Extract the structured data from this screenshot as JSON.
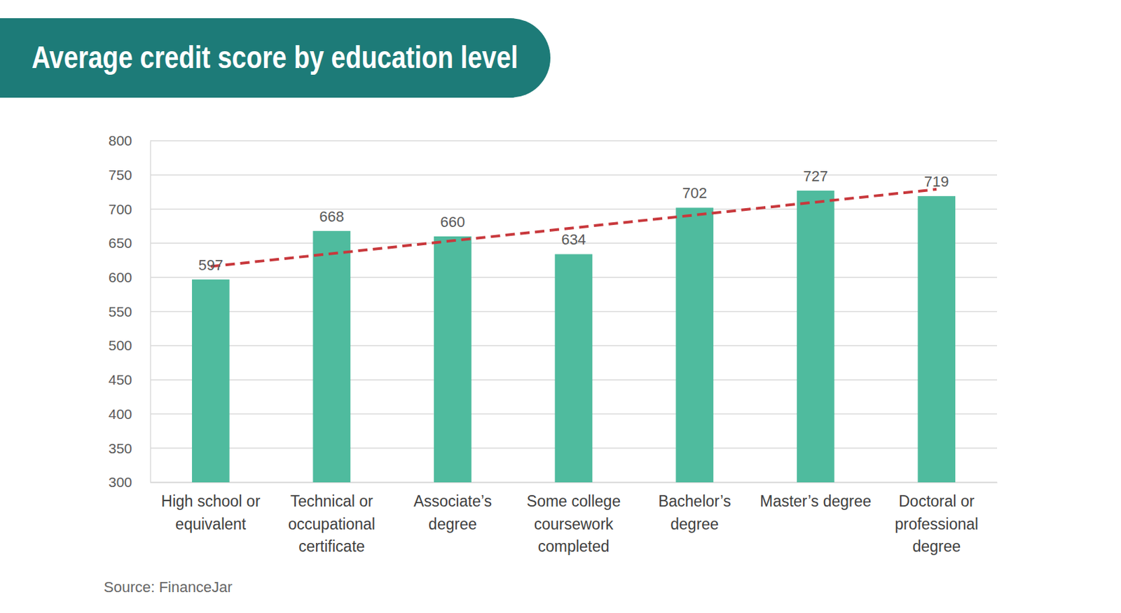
{
  "chart_data": {
    "type": "bar",
    "title": "Average credit score by education level",
    "source": "Source: FinanceJar",
    "categories": [
      "High school or equivalent",
      "Technical or occupational certificate",
      "Associate’s degree",
      "Some college coursework completed",
      "Bachelor’s degree",
      "Master’s degree",
      "Doctoral or professional degree"
    ],
    "values": [
      597,
      668,
      660,
      634,
      702,
      727,
      719
    ],
    "color": "#4fbb9e",
    "data_labels": true,
    "ylim": [
      300,
      800
    ],
    "yticks": [
      300,
      350,
      400,
      450,
      500,
      550,
      600,
      650,
      700,
      750,
      800
    ],
    "grid": true,
    "trend_line": {
      "values": [
        616,
        729
      ],
      "color": "#c8383c",
      "line_style": "dashed"
    }
  }
}
